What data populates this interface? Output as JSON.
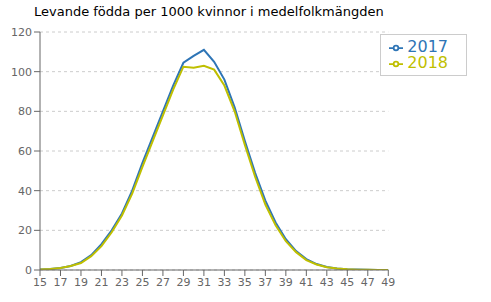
{
  "chart_data": {
    "type": "line",
    "title": "Levande födda per 1000 kvinnor i medelfolkmängden",
    "x": [
      15,
      16,
      17,
      18,
      19,
      20,
      21,
      22,
      23,
      24,
      25,
      26,
      27,
      28,
      29,
      30,
      31,
      32,
      33,
      34,
      35,
      36,
      37,
      38,
      39,
      40,
      41,
      42,
      43,
      44,
      45,
      46,
      47,
      48,
      49
    ],
    "series": [
      {
        "name": "2017",
        "color": "#2E75B6",
        "values": [
          0.3,
          0.5,
          1.0,
          2.0,
          4.0,
          7.5,
          13.0,
          20.0,
          28.5,
          40.0,
          54.0,
          67.0,
          80.0,
          93.0,
          104.5,
          108.0,
          111.0,
          105.0,
          96.0,
          82.0,
          65.0,
          49.0,
          35.0,
          24.0,
          15.5,
          9.5,
          5.5,
          3.0,
          1.5,
          0.8,
          0.4,
          0.2,
          0.1,
          0.05,
          0.02
        ]
      },
      {
        "name": "2018",
        "color": "#BFBF00",
        "values": [
          0.3,
          0.5,
          1.0,
          2.0,
          3.5,
          7.0,
          12.0,
          19.0,
          27.5,
          38.5,
          52.0,
          65.0,
          78.0,
          91.0,
          102.5,
          102.0,
          103.0,
          101.0,
          93.0,
          80.0,
          63.0,
          47.0,
          33.0,
          22.5,
          14.5,
          9.0,
          5.0,
          2.8,
          1.4,
          0.7,
          0.35,
          0.18,
          0.1,
          0.05,
          0.02
        ]
      }
    ],
    "xlim": [
      15,
      49
    ],
    "xticks": [
      15,
      17,
      19,
      21,
      23,
      25,
      27,
      29,
      31,
      33,
      35,
      37,
      39,
      41,
      43,
      45,
      47,
      49
    ],
    "ylim": [
      0,
      120
    ],
    "yticks": [
      0,
      20,
      40,
      60,
      80,
      100,
      120
    ],
    "grid": true,
    "legend": "upper right"
  }
}
